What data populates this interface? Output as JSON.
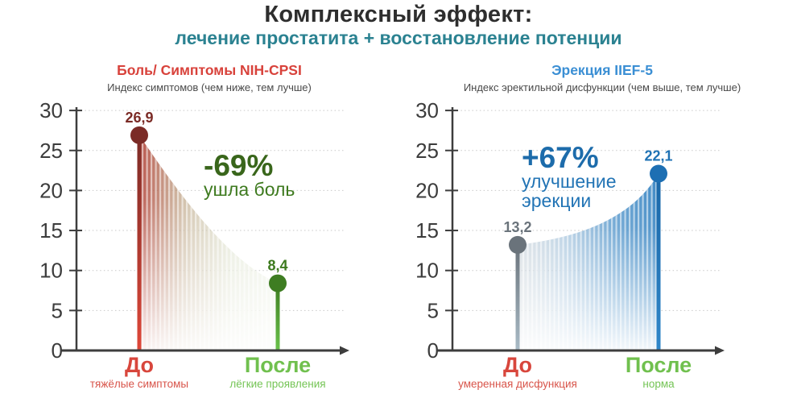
{
  "header": {
    "title": "Комплексный эффект:",
    "subtitle": "лечение простатита + восстановление потенции",
    "title_color": "#2e2e2e",
    "subtitle_color": "#2b8291"
  },
  "axes": {
    "yticks": [
      0,
      5,
      10,
      15,
      20,
      25,
      30
    ],
    "ymax": 30,
    "axis_color": "#3d3d3d",
    "tick_label_color": "#3c3c3c",
    "grid_color": "#c9c9c9",
    "grid_style": "dotted-horizontal"
  },
  "chart_data": [
    {
      "type": "area",
      "title": "Боль/ Симптомы NIH-CPSI",
      "title_color": "#d8423b",
      "subtitle": "Индекс симптомов (чем ниже, тем лучше)",
      "subtitle_color": "#4a4a4a",
      "categories": [
        "До",
        "После"
      ],
      "category_sublabels": [
        "тяжёлые симптомы",
        "лёгкие проявления"
      ],
      "category_colors": [
        "#d8463c",
        "#70c04e"
      ],
      "category_sublabel_colors": [
        "#d8544a",
        "#74c455"
      ],
      "values": [
        26.9,
        8.4
      ],
      "value_labels": [
        "26,9",
        "8,4"
      ],
      "value_label_colors": [
        "#7b2b26",
        "#3c7a1d"
      ],
      "marker_colors": [
        "#7b2b26",
        "#3e7d22"
      ],
      "stem_gradients": [
        [
          "#7b2b26",
          "#de4739"
        ],
        [
          "#3e7d22",
          "#6ac24b"
        ]
      ],
      "area_gradient": [
        "#b03a31",
        "#a88a5f",
        "#c3cca7",
        "#d4debf"
      ],
      "annotation": {
        "headline": "-69%",
        "lines": [
          "ушла боль"
        ],
        "headline_color": "#39661b",
        "line_color": "#3e7a1f"
      },
      "ylim": [
        0,
        30
      ],
      "yticks": [
        0,
        5,
        10,
        15,
        20,
        25,
        30
      ],
      "legend": false
    },
    {
      "type": "area",
      "title": "Эрекция IIEF-5",
      "title_color": "#3b8fd4",
      "subtitle": "Индекс эректильной дисфункции (чем выше, тем лучше)",
      "subtitle_color": "#4a4a4a",
      "categories": [
        "До",
        "После"
      ],
      "category_sublabels": [
        "умеренная дисфункция",
        "норма"
      ],
      "category_colors": [
        "#d8463c",
        "#70c04e"
      ],
      "category_sublabel_colors": [
        "#d8544a",
        "#74c455"
      ],
      "values": [
        13.2,
        22.1
      ],
      "value_labels": [
        "13,2",
        "22,1"
      ],
      "value_label_colors": [
        "#6a737b",
        "#1f72b4"
      ],
      "marker_colors": [
        "#6a737b",
        "#1d6fb3"
      ],
      "stem_gradients": [
        [
          "#6a737b",
          "#a9bbc6"
        ],
        [
          "#1a67a8",
          "#2f86c9"
        ]
      ],
      "area_gradient": [
        "#a9b6c0",
        "#84aed0",
        "#4a90c8",
        "#2e7fc0"
      ],
      "annotation": {
        "headline": "+67%",
        "lines": [
          "улучшение",
          "эрекции"
        ],
        "headline_color": "#1d6cab",
        "line_color": "#2274b5"
      },
      "ylim": [
        0,
        30
      ],
      "yticks": [
        0,
        5,
        10,
        15,
        20,
        25,
        30
      ],
      "legend": false
    }
  ]
}
